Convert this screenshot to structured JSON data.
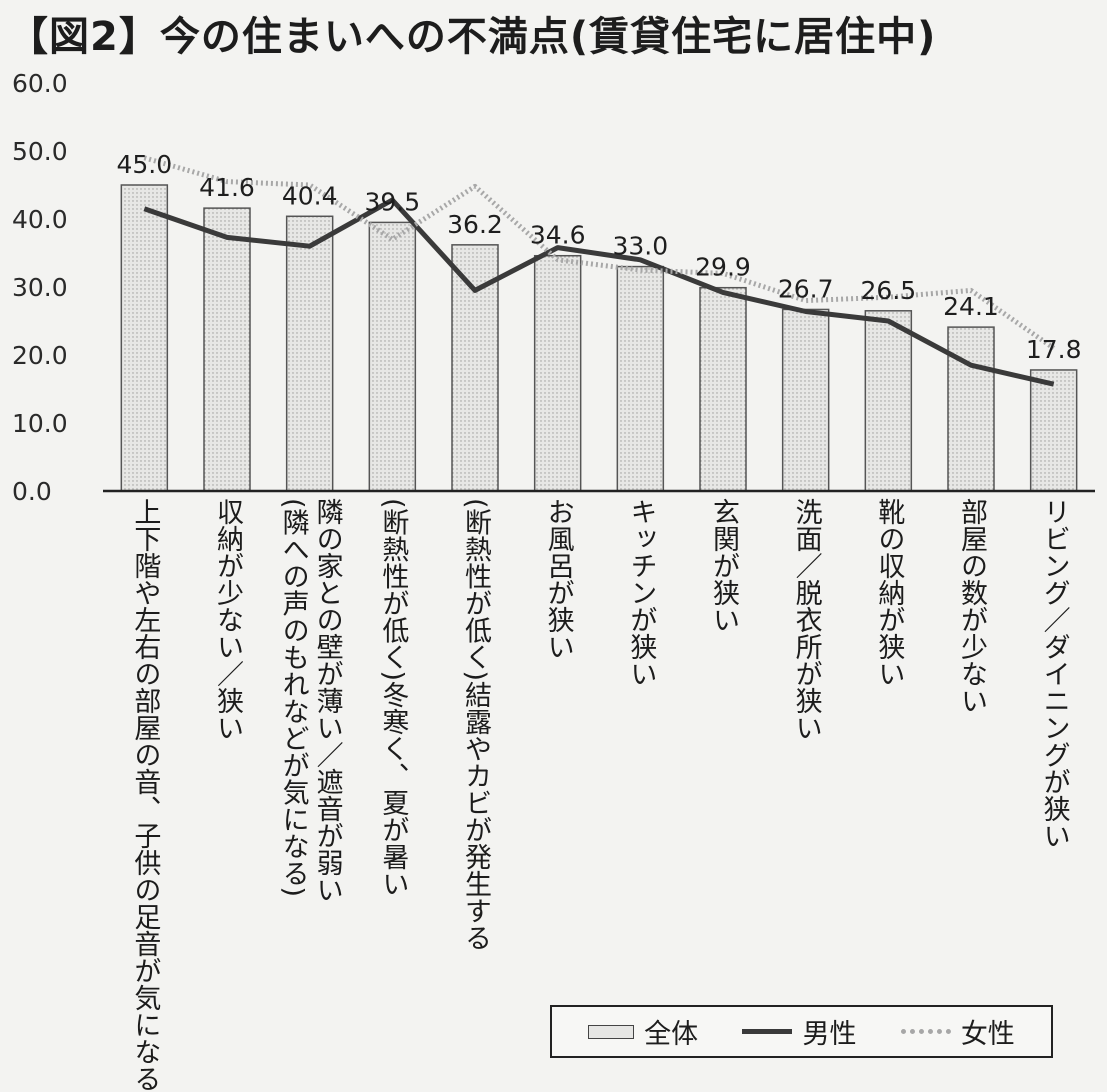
{
  "title": "【図2】今の住まいへの不満点(賃貸住宅に居住中)",
  "legend": {
    "all": "全体",
    "men": "男性",
    "women": "女性"
  },
  "colors": {
    "bar_fill": "#e7e7e5",
    "bar_stroke": "#555555",
    "men_line": "#3a3a3a",
    "women_line": "#a8a8a8"
  },
  "chart_data": {
    "type": "bar",
    "title": "今の住まいへの不満点(賃貸住宅に居住中)",
    "ylim": [
      0,
      60
    ],
    "y_ticks": [
      "60.0",
      "50.0",
      "40.0",
      "30.0",
      "20.0",
      "10.0",
      "0.0"
    ],
    "legend_position": "bottom-right",
    "categories": [
      "上下階や左右の部屋の音、子供の足音が気になる",
      "収納が少ない／狭い",
      "隣の家との壁が薄い／遮音が弱い\n(隣への声のもれなどが気になる)",
      "(断熱性が低く)冬寒く、夏が暑い",
      "(断熱性が低く)結露やカビが発生する",
      "お風呂が狭い",
      "キッチンが狭い",
      "玄関が狭い",
      "洗面／脱衣所が狭い",
      "靴の収納が狭い",
      "部屋の数が少ない",
      "リビング／ダイニングが狭い"
    ],
    "series": [
      {
        "name": "全体",
        "kind": "bar",
        "values": [
          45.0,
          41.6,
          40.4,
          39.5,
          36.2,
          34.6,
          33.0,
          29.9,
          26.7,
          26.5,
          24.1,
          17.8
        ],
        "labels": [
          "45.0",
          "41.6",
          "40.4",
          "39.5",
          "36.2",
          "34.6",
          "33.0",
          "29.9",
          "26.7",
          "26.5",
          "24.1",
          "17.8"
        ]
      },
      {
        "name": "男性",
        "kind": "line",
        "values": [
          41.5,
          37.3,
          36.0,
          42.8,
          29.5,
          35.8,
          34.0,
          29.2,
          26.4,
          25.0,
          18.5,
          15.7
        ]
      },
      {
        "name": "女性",
        "kind": "line",
        "values": [
          49.0,
          45.5,
          45.0,
          37.0,
          44.8,
          34.0,
          32.5,
          32.0,
          28.0,
          28.5,
          29.5,
          21.0
        ]
      }
    ]
  }
}
